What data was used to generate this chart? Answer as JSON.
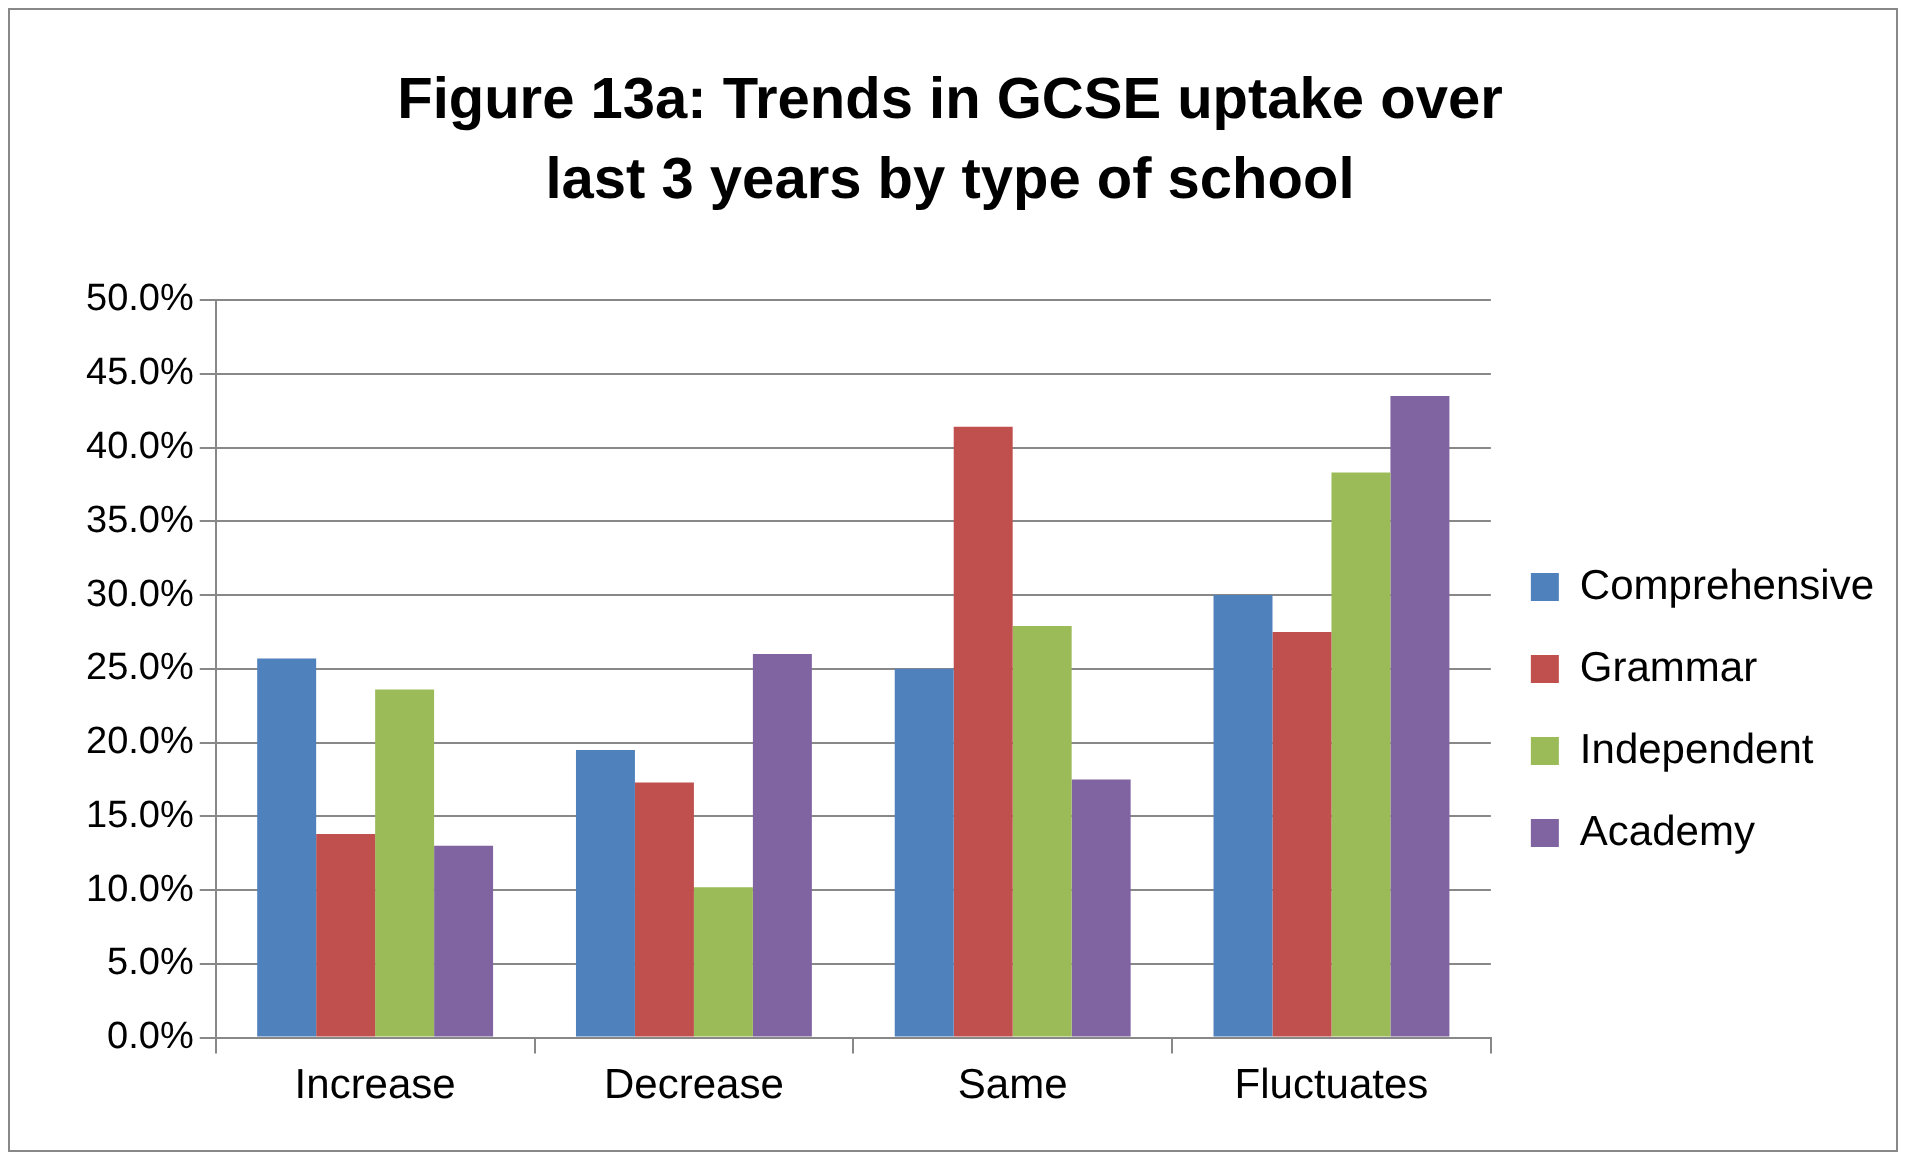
{
  "chart_data": {
    "type": "bar",
    "title": "Figure 13a: Trends in GCSE uptake over last 3 years by type of school",
    "categories": [
      "Increase",
      "Decrease",
      "Same",
      "Fluctuates"
    ],
    "series": [
      {
        "name": "Comprehensive",
        "color": "#4f81bd",
        "values": [
          25.7,
          19.5,
          25.0,
          30.0
        ]
      },
      {
        "name": "Grammar",
        "color": "#c0504d",
        "values": [
          13.8,
          17.3,
          41.4,
          27.5
        ]
      },
      {
        "name": "Independent",
        "color": "#9bbb59",
        "values": [
          23.6,
          10.2,
          27.9,
          38.3
        ]
      },
      {
        "name": "Academy",
        "color": "#8064a2",
        "values": [
          13.0,
          26.0,
          17.5,
          43.5
        ]
      }
    ],
    "ylim": [
      0,
      50
    ],
    "yticks": [
      {
        "value": 0,
        "label": "0.0%"
      },
      {
        "value": 5,
        "label": "5.0%"
      },
      {
        "value": 10,
        "label": "10.0%"
      },
      {
        "value": 15,
        "label": "15.0%"
      },
      {
        "value": 20,
        "label": "20.0%"
      },
      {
        "value": 25,
        "label": "25.0%"
      },
      {
        "value": 30,
        "label": "30.0%"
      },
      {
        "value": 35,
        "label": "35.0%"
      },
      {
        "value": 40,
        "label": "40.0%"
      },
      {
        "value": 45,
        "label": "45.0%"
      },
      {
        "value": 50,
        "label": "50.0%"
      }
    ],
    "grid": "y",
    "legend": "right"
  }
}
